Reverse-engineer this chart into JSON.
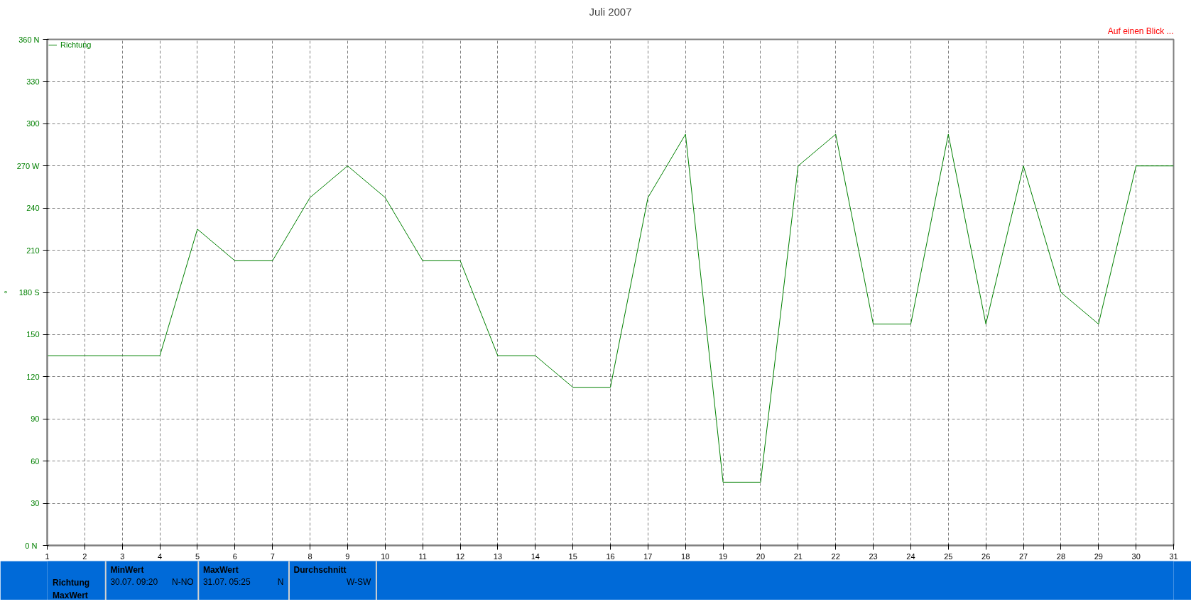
{
  "chart_data": {
    "type": "line",
    "title": "Juli 2007",
    "ylabel": "°",
    "x": [
      1,
      2,
      3,
      4,
      5,
      6,
      7,
      8,
      9,
      10,
      11,
      12,
      13,
      14,
      15,
      16,
      17,
      18,
      19,
      20,
      21,
      22,
      23,
      24,
      25,
      26,
      27,
      28,
      29,
      30,
      31
    ],
    "series": [
      {
        "name": "Richtung",
        "color": "#008000",
        "values": [
          135,
          135,
          135,
          135,
          225,
          202.5,
          202.5,
          247.5,
          270,
          247.5,
          202.5,
          202.5,
          135,
          135,
          112.5,
          112.5,
          247.5,
          292.5,
          45,
          45,
          270,
          292.5,
          157.5,
          157.5,
          292.5,
          157.5,
          270,
          180,
          157.5,
          270,
          270
        ]
      }
    ],
    "xlim": [
      1,
      31
    ],
    "xticks": [
      1,
      2,
      3,
      4,
      5,
      6,
      7,
      8,
      9,
      10,
      11,
      12,
      13,
      14,
      15,
      16,
      17,
      18,
      19,
      20,
      21,
      22,
      23,
      24,
      25,
      26,
      27,
      28,
      29,
      30,
      31
    ],
    "ylim": [
      0,
      360
    ],
    "yticks": [
      {
        "value": 0,
        "label": "0  N"
      },
      30,
      60,
      90,
      120,
      150,
      {
        "value": 180,
        "label": "180 S"
      },
      210,
      240,
      {
        "value": 270,
        "label": "270 W"
      },
      300,
      330,
      {
        "value": 360,
        "label": "360 N"
      }
    ],
    "grid": true,
    "legend": "top left",
    "marker": "none",
    "line_style": "solid",
    "annotations": [
      "Auf einen Blick ...",
      "Richtung",
      "MaxWert",
      "MinWert",
      "30.07.  09:20",
      "N-NO",
      "MaxWert",
      "31.07.  05:25",
      "N",
      "Durchschnitt",
      "W-SW"
    ]
  }
}
